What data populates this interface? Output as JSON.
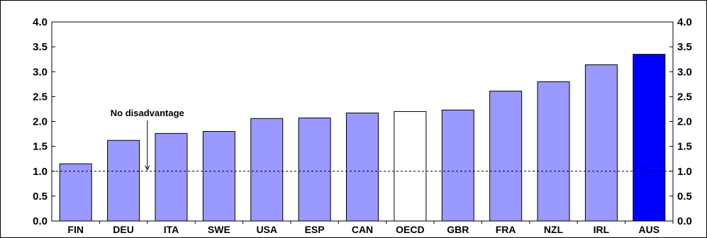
{
  "chart_data": {
    "type": "bar",
    "categories": [
      "FIN",
      "DEU",
      "ITA",
      "SWE",
      "USA",
      "ESP",
      "CAN",
      "OECD",
      "GBR",
      "FRA",
      "NZL",
      "IRL",
      "AUS"
    ],
    "values": [
      1.15,
      1.62,
      1.76,
      1.8,
      2.06,
      2.07,
      2.17,
      2.2,
      2.23,
      2.61,
      2.8,
      3.14,
      3.35
    ],
    "bar_colors": [
      "#9999ff",
      "#9999ff",
      "#9999ff",
      "#9999ff",
      "#9999ff",
      "#9999ff",
      "#9999ff",
      "#ffffff",
      "#9999ff",
      "#9999ff",
      "#9999ff",
      "#9999ff",
      "#0000ff"
    ],
    "ylim": [
      0,
      4.0
    ],
    "yticks": [
      "0.0",
      "0.5",
      "1.0",
      "1.5",
      "2.0",
      "2.5",
      "3.0",
      "3.5",
      "4.0"
    ],
    "reference_line": {
      "value": 1.0,
      "style": "dashed"
    },
    "annotation": {
      "text": "No disadvantage",
      "x_category": "DEU"
    },
    "highlight_category": "AUS",
    "grid": false,
    "title": "",
    "xlabel": "",
    "ylabel": "",
    "legend": "none"
  }
}
